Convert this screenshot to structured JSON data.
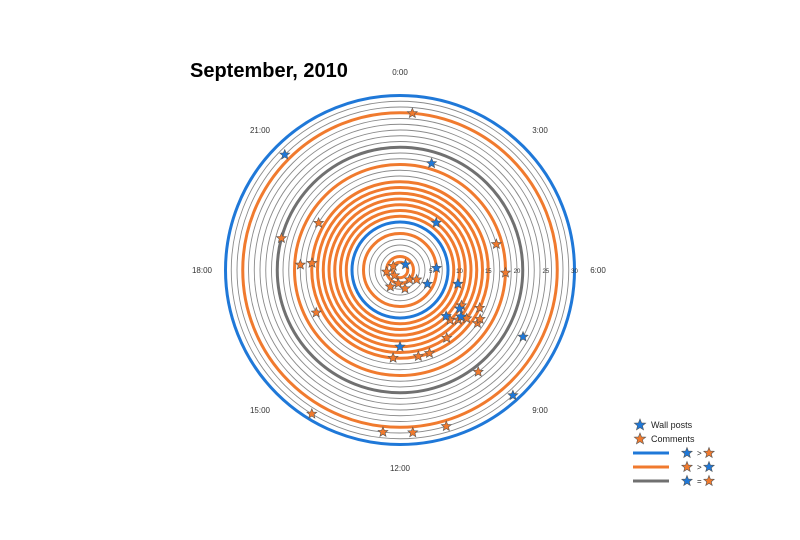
{
  "title": "September, 2010",
  "colors": {
    "wall": "#1f78d8",
    "comment": "#f07a2e",
    "equal": "#707070",
    "ring": "#8a8a8a",
    "star_stroke": "#555555"
  },
  "chart_data": {
    "type": "polar-spiral",
    "title": "September, 2010",
    "hour_labels": [
      "0:00",
      "3:00",
      "6:00",
      "9:00",
      "12:00",
      "15:00",
      "18:00",
      "21:00"
    ],
    "day_ticks": [
      "5",
      "10",
      "15",
      "20",
      "25",
      "30"
    ],
    "days": 30,
    "legend": [
      {
        "kind": "star",
        "color": "wall",
        "label": "Wall posts"
      },
      {
        "kind": "star",
        "color": "comment",
        "label": "Comments"
      },
      {
        "kind": "line",
        "color": "wall",
        "left": "wall",
        "op": ">",
        "right": "comment"
      },
      {
        "kind": "line",
        "color": "comment",
        "left": "comment",
        "op": ">",
        "right": "wall"
      },
      {
        "kind": "line",
        "color": "equal",
        "left": "wall",
        "op": "=",
        "right": "comment"
      }
    ],
    "ring_dominance": [
      "comment",
      "comment",
      "none",
      "none",
      "none",
      "comment",
      "none",
      "wall",
      "comment",
      "comment",
      "comment",
      "comment",
      "comment",
      "comment",
      "comment",
      "none",
      "none",
      "comment",
      "none",
      "none",
      "equal",
      "none",
      "none",
      "none",
      "none",
      "none",
      "comment",
      "none",
      "none",
      "wall"
    ],
    "wall_posts": [
      {
        "day": 1,
        "hour": 3.0
      },
      {
        "day": 5,
        "hour": 7.8
      },
      {
        "day": 6,
        "hour": 5.8
      },
      {
        "day": 10,
        "hour": 2.5
      },
      {
        "day": 10,
        "hour": 6.9
      },
      {
        "day": 11,
        "hour": 9.0
      },
      {
        "day": 12,
        "hour": 8.2
      },
      {
        "day": 13,
        "hour": 8.5
      },
      {
        "day": 13,
        "hour": 12.0
      },
      {
        "day": 19,
        "hour": 1.1
      },
      {
        "day": 24,
        "hour": 7.9
      },
      {
        "day": 28,
        "hour": 21.0
      },
      {
        "day": 29,
        "hour": 9.2
      }
    ],
    "comments": [
      {
        "day": 1,
        "hour": 20.0
      },
      {
        "day": 1,
        "hour": 15.0
      },
      {
        "day": 2,
        "hour": 9.0
      },
      {
        "day": 2,
        "hour": 12.5
      },
      {
        "day": 2,
        "hour": 17.5
      },
      {
        "day": 3,
        "hour": 11.0
      },
      {
        "day": 3,
        "hour": 8.0
      },
      {
        "day": 3,
        "hour": 14.0
      },
      {
        "day": 12,
        "hour": 9.0
      },
      {
        "day": 13,
        "hour": 8.7
      },
      {
        "day": 12,
        "hour": 8.0
      },
      {
        "day": 14,
        "hour": 8.4
      },
      {
        "day": 15,
        "hour": 7.7
      },
      {
        "day": 14,
        "hour": 9.7
      },
      {
        "day": 15,
        "hour": 11.2
      },
      {
        "day": 15,
        "hour": 12.3
      },
      {
        "day": 15,
        "hour": 10.7
      },
      {
        "day": 15,
        "hour": 18.3
      },
      {
        "day": 16,
        "hour": 16.2
      },
      {
        "day": 16,
        "hour": 20.0
      },
      {
        "day": 17,
        "hour": 18.2
      },
      {
        "day": 17,
        "hour": 5.0
      },
      {
        "day": 18,
        "hour": 6.1
      },
      {
        "day": 16,
        "hour": 8.3
      },
      {
        "day": 16,
        "hour": 8.1
      },
      {
        "day": 22,
        "hour": 9.5
      },
      {
        "day": 27,
        "hour": 0.3
      },
      {
        "day": 28,
        "hour": 12.4
      },
      {
        "day": 28,
        "hour": 11.7
      },
      {
        "day": 29,
        "hour": 14.1
      },
      {
        "day": 28,
        "hour": 10.9
      },
      {
        "day": 21,
        "hour": 19.0
      }
    ]
  }
}
